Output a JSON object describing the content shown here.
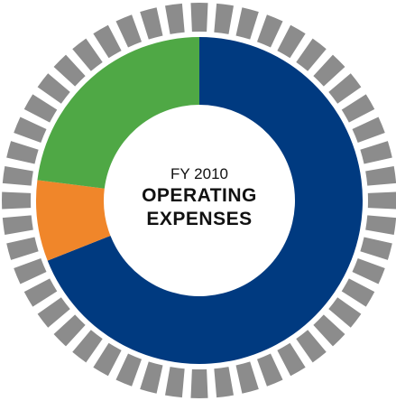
{
  "chart_data": {
    "type": "donut",
    "subtitle": "FY 2010",
    "title": "OPERATING EXPENSES",
    "categories": [
      null,
      null,
      null
    ],
    "values": [
      69,
      8,
      23
    ],
    "colors": [
      "#003a80",
      "#f0862a",
      "#4fa845"
    ]
  }
}
